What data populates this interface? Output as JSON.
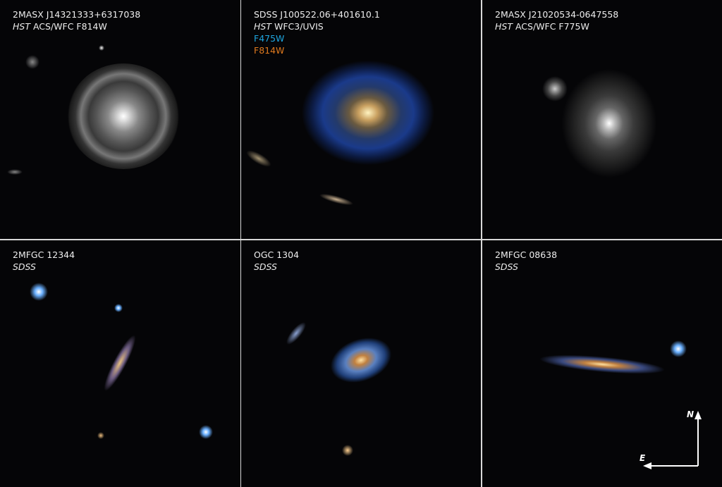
{
  "panels": [
    {
      "name": "2MASX J14321333+6317038",
      "instrument_italic": "HST",
      "instrument": " ACS/WFC F814W",
      "row": "top"
    },
    {
      "name": "SDSS J100522.06+401610.1",
      "instrument_italic": "HST",
      "instrument": " WFC3/UVIS",
      "filters": [
        {
          "label": "F475W",
          "color": "#1ea6e0"
        },
        {
          "label": "F814W",
          "color": "#e07a1e"
        }
      ]
    },
    {
      "name": "2MASX J21020534-0647558",
      "instrument_italic": "HST",
      "instrument": " ACS/WFC F775W"
    },
    {
      "name": "2MFGC 12344",
      "instrument_italic": "SDSS"
    },
    {
      "name": "OGC 1304",
      "instrument_italic": "SDSS"
    },
    {
      "name": "2MFGC 08638",
      "instrument_italic": "SDSS"
    }
  ],
  "compass": {
    "north": "N",
    "east": "E"
  }
}
